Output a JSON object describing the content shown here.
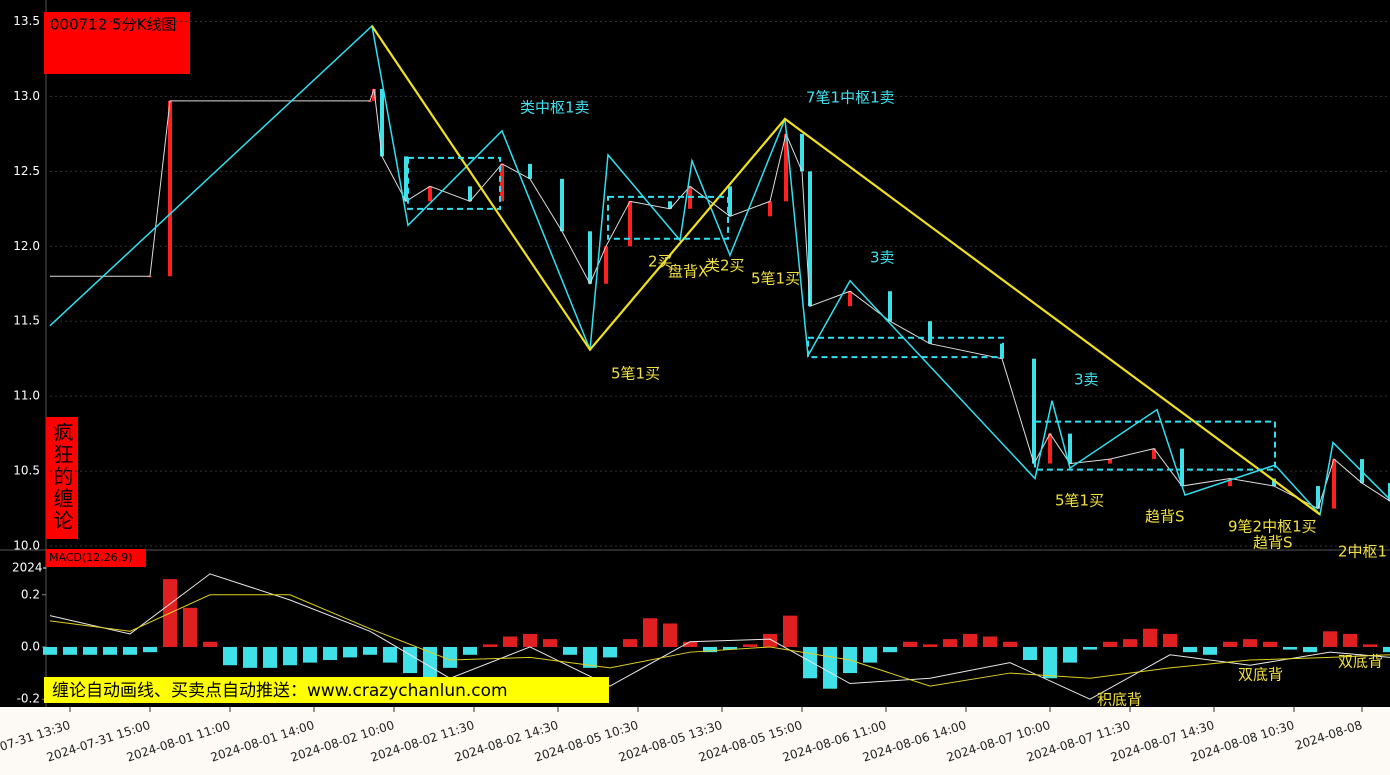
{
  "chart_data": [
    {
      "type": "line",
      "title": "000712 5分K线图",
      "side_label": "疯狂的缠论",
      "banner": "缠论自动画线、买卖点自动推送：www.crazychanlun.com",
      "xlim": [
        0,
        335
      ],
      "ylim": [
        10,
        13.55
      ],
      "yticks": [
        {
          "value": 13.5,
          "label": "13.5"
        },
        {
          "value": 13,
          "label": "13.0"
        },
        12.5,
        {
          "value": 12,
          "label": "12.0"
        },
        11.5,
        {
          "value": 11,
          "label": "11.0"
        },
        10.5,
        {
          "value": 10,
          "label": "10.0"
        }
      ],
      "xticks": [
        {
          "value": 5,
          "label": "2024-07-31 13:30"
        },
        {
          "value": 25,
          "label": "2024-07-31 15:00"
        },
        {
          "value": 45,
          "label": "2024-08-01 11:00"
        },
        {
          "value": 66,
          "label": "2024-08-01 14:00"
        },
        {
          "value": 86,
          "label": "2024-08-02 10:00"
        },
        {
          "value": 106,
          "label": "2024-08-02 11:30"
        },
        {
          "value": 127,
          "label": "2024-08-02 14:30"
        },
        {
          "value": 147,
          "label": "2024-08-05 10:30"
        },
        {
          "value": 168,
          "label": "2024-08-05 13:30"
        },
        {
          "value": 188,
          "label": "2024-08-05 15:00"
        },
        {
          "value": 209,
          "label": "2024-08-06 11:00"
        },
        {
          "value": 229,
          "label": "2024-08-06 14:00"
        },
        {
          "value": 250,
          "label": "2024-08-07 10:00"
        },
        {
          "value": 270,
          "label": "2024-08-07 11:30"
        },
        {
          "value": 291,
          "label": "2024-08-07 14:30"
        },
        {
          "value": 311,
          "label": "2024-08-08 10:30"
        },
        {
          "value": 328,
          "label": "2024-08-08"
        }
      ],
      "grid": true,
      "up_color": "#ff2020",
      "down_color": "#40e0e8",
      "x": [
        0,
        25,
        30,
        80,
        81,
        83,
        89,
        95,
        105,
        113,
        120,
        128,
        135,
        139,
        145,
        155,
        160,
        170,
        180,
        184,
        188,
        190,
        200,
        210,
        220,
        238,
        246,
        250,
        255,
        265,
        276,
        283,
        295,
        306,
        317,
        321,
        328,
        335
      ],
      "values": [
        11.8,
        11.8,
        12.97,
        12.97,
        13.05,
        12.6,
        12.3,
        12.4,
        12.3,
        12.55,
        12.45,
        12.1,
        11.75,
        12.0,
        12.3,
        12.25,
        12.4,
        12.2,
        12.3,
        12.75,
        12.5,
        11.6,
        11.7,
        11.5,
        11.35,
        11.25,
        10.55,
        10.75,
        10.55,
        10.58,
        10.65,
        10.4,
        10.45,
        10.4,
        10.25,
        10.58,
        10.42,
        10.3
      ],
      "color": "#dddddd",
      "strokes": {
        "color": "#30e0f0",
        "x": [
          0,
          80.5,
          89.5,
          113,
          135,
          139.5,
          157.5,
          160.5,
          170,
          183.75,
          189.5,
          200,
          246.25,
          250.5,
          255,
          276.75,
          283.75,
          306.25,
          317.5,
          320.75,
          335
        ],
        "values": [
          11.47,
          13.47,
          12.14,
          12.77,
          11.31,
          12.61,
          12.04,
          12.57,
          11.94,
          12.85,
          11.27,
          11.77,
          10.45,
          10.97,
          10.52,
          10.91,
          10.34,
          10.54,
          10.21,
          10.69,
          10.31
        ]
      },
      "segments": {
        "color": "#f0e020",
        "x": [
          80.5,
          135,
          183.75,
          317.5
        ],
        "values": [
          13.47,
          11.31,
          12.85,
          10.21
        ]
      },
      "pivots": {
        "color": "#30e0f0",
        "x0": [
          89.5,
          139.5,
          189.5,
          246.25
        ],
        "x1": [
          112.5,
          169.5,
          238.25,
          306.25
        ],
        "low": [
          12.25,
          12.05,
          11.26,
          10.51
        ],
        "high": [
          12.59,
          12.33,
          11.39,
          10.83
        ]
      },
      "annotations": [
        {
          "text": "类中枢1卖",
          "color": "#40e0f0"
        },
        {
          "text": "7笔1中枢1卖",
          "color": "#40e0f0"
        },
        {
          "text": "5笔1买",
          "color": "#f0e040"
        },
        {
          "text": "2买",
          "color": "#f0e040"
        },
        {
          "text": "盘背X",
          "color": "#f0e040"
        },
        {
          "text": "类2买",
          "color": "#f0e040"
        },
        {
          "text": "5笔1买",
          "color": "#f0e040"
        },
        {
          "text": "3卖",
          "color": "#40e0f0"
        },
        {
          "text": "3卖",
          "color": "#40e0f0"
        },
        {
          "text": "5笔1买",
          "color": "#f0e040"
        },
        {
          "text": "趋背S",
          "color": "#f0e040"
        },
        {
          "text": "9笔2中枢1买",
          "color": "#f0e040"
        },
        {
          "text": "趋背S",
          "color": "#f0e040"
        },
        {
          "text": "2中枢1",
          "color": "#f0e040"
        }
      ]
    },
    {
      "type": "bar",
      "title": "MACD(12,26,9)",
      "subtitle": "2024-",
      "xlim": [
        0,
        335
      ],
      "ylim": [
        -0.23,
        0.36
      ],
      "yticks": [
        0.2,
        {
          "value": 0,
          "label": "0.0"
        },
        -0.2
      ],
      "up_color": "#e02020",
      "down_color": "#40e0e8",
      "x": [
        0,
        5,
        10,
        15,
        20,
        25,
        30,
        35,
        40,
        45,
        50,
        55,
        60,
        65,
        70,
        75,
        80,
        85,
        90,
        95,
        100,
        105,
        110,
        115,
        120,
        125,
        130,
        135,
        140,
        145,
        150,
        155,
        160,
        165,
        170,
        175,
        180,
        185,
        190,
        195,
        200,
        205,
        210,
        215,
        220,
        225,
        230,
        235,
        240,
        245,
        250,
        255,
        260,
        265,
        270,
        275,
        280,
        285,
        290,
        295,
        300,
        305,
        310,
        315,
        320,
        325,
        330,
        335
      ],
      "values": [
        -0.03,
        -0.03,
        -0.03,
        -0.03,
        -0.03,
        -0.02,
        0.26,
        0.15,
        0.02,
        -0.07,
        -0.08,
        -0.08,
        -0.07,
        -0.06,
        -0.05,
        -0.04,
        -0.03,
        -0.06,
        -0.1,
        -0.12,
        -0.08,
        -0.03,
        0.01,
        0.04,
        0.05,
        0.03,
        -0.03,
        -0.08,
        -0.04,
        0.03,
        0.11,
        0.09,
        0.02,
        -0.02,
        -0.01,
        0.01,
        0.05,
        0.12,
        -0.12,
        -0.16,
        -0.1,
        -0.06,
        -0.02,
        0.02,
        0.01,
        0.03,
        0.05,
        0.04,
        0.02,
        -0.05,
        -0.12,
        -0.06,
        -0.01,
        0.02,
        0.03,
        0.07,
        0.05,
        -0.02,
        -0.03,
        0.02,
        0.03,
        0.02,
        -0.01,
        -0.02,
        0.06,
        0.05,
        0.01,
        -0.02
      ],
      "lines_x": [
        0,
        20,
        40,
        60,
        80,
        100,
        120,
        140,
        160,
        180,
        200,
        220,
        240,
        260,
        280,
        300,
        320,
        335
      ],
      "dif": {
        "color": "#e8e8e8",
        "values": [
          0.12,
          0.05,
          0.28,
          0.18,
          0.06,
          -0.12,
          0.0,
          -0.15,
          0.02,
          0.03,
          -0.14,
          -0.12,
          -0.06,
          -0.2,
          -0.03,
          -0.07,
          -0.02,
          -0.04
        ]
      },
      "dea": {
        "color": "#e0d020",
        "values": [
          0.1,
          0.06,
          0.2,
          0.2,
          0.07,
          -0.05,
          -0.04,
          -0.08,
          -0.02,
          0.0,
          -0.05,
          -0.15,
          -0.1,
          -0.12,
          -0.08,
          -0.05,
          -0.04,
          -0.03
        ]
      },
      "annotations": [
        {
          "text": "积底背",
          "color": "#f0e040"
        },
        {
          "text": "双底背",
          "color": "#f0e040"
        },
        {
          "text": "双底背",
          "color": "#f0e040"
        }
      ]
    }
  ]
}
